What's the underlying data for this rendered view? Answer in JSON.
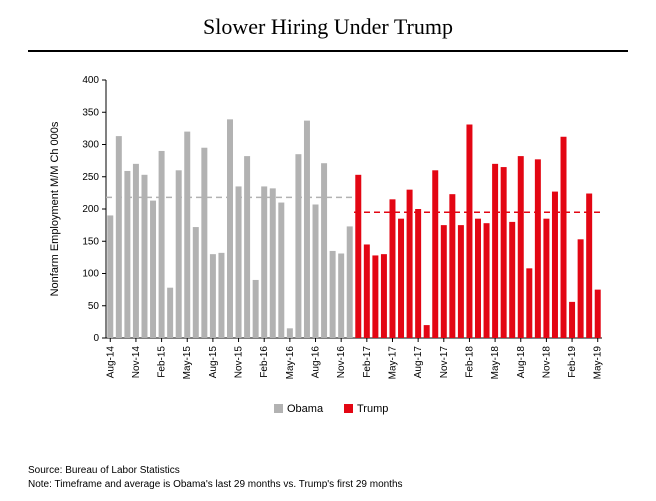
{
  "title": "Slower Hiring Under Trump",
  "footer": {
    "source": "Source: Bureau of Labor Statistics",
    "note": "Note: Timeframe and average is Obama's last 29 months vs. Trump's first 29 months"
  },
  "chart": {
    "type": "bar",
    "ylabel": "Nonfarm Employment M/M Ch 000s",
    "label_fontsize": 11,
    "tick_fontsize": 10,
    "ylim": [
      0,
      400
    ],
    "ytick_step": 50,
    "background_color": "#ffffff",
    "axis_color": "#000000",
    "bar_gap_ratio": 0.3,
    "series": [
      {
        "name": "Obama",
        "color": "#b2b2b2",
        "avg_line_value": 218,
        "categories": [
          "Aug-14",
          "Sep-14",
          "Oct-14",
          "Nov-14",
          "Dec-14",
          "Jan-15",
          "Feb-15",
          "Mar-15",
          "Apr-15",
          "May-15",
          "Jun-15",
          "Jul-15",
          "Aug-15",
          "Sep-15",
          "Oct-15",
          "Nov-15",
          "Dec-15",
          "Jan-16",
          "Feb-16",
          "Mar-16",
          "Apr-16",
          "May-16",
          "Jun-16",
          "Jul-16",
          "Aug-16",
          "Sep-16",
          "Oct-16",
          "Nov-16",
          "Dec-16"
        ],
        "values": [
          190,
          313,
          259,
          270,
          253,
          213,
          290,
          78,
          260,
          320,
          172,
          295,
          130,
          132,
          339,
          235,
          282,
          90,
          235,
          232,
          210,
          15,
          285,
          337,
          207,
          271,
          135,
          131,
          173
        ]
      },
      {
        "name": "Trump",
        "color": "#e30613",
        "avg_line_value": 195,
        "categories": [
          "Jan-17",
          "Feb-17",
          "Mar-17",
          "Apr-17",
          "May-17",
          "Jun-17",
          "Jul-17",
          "Aug-17",
          "Sep-17",
          "Oct-17",
          "Nov-17",
          "Dec-17",
          "Jan-18",
          "Feb-18",
          "Mar-18",
          "Apr-18",
          "May-18",
          "Jun-18",
          "Jul-18",
          "Aug-18",
          "Sep-18",
          "Oct-18",
          "Nov-18",
          "Dec-18",
          "Jan-19",
          "Feb-19",
          "Mar-19",
          "Apr-19",
          "May-19"
        ],
        "values": [
          253,
          145,
          128,
          130,
          215,
          185,
          230,
          200,
          20,
          260,
          175,
          223,
          175,
          331,
          185,
          178,
          270,
          265,
          180,
          282,
          108,
          277,
          185,
          227,
          312,
          56,
          153,
          224,
          75
        ]
      }
    ],
    "x_tick_labels": [
      "Aug-14",
      "Nov-14",
      "Feb-15",
      "May-15",
      "Aug-15",
      "Nov-15",
      "Feb-16",
      "May-16",
      "Aug-16",
      "Nov-16",
      "Feb-17",
      "May-17",
      "Aug-17",
      "Nov-17",
      "Feb-18",
      "May-18",
      "Aug-18",
      "Nov-18",
      "Feb-19",
      "May-19"
    ],
    "legend": {
      "swatch_size": 9,
      "fontsize": 11
    },
    "dash_pattern": "6,4",
    "avg_line_width": 1.5,
    "axis_line_width": 1,
    "tick_length": 4
  }
}
